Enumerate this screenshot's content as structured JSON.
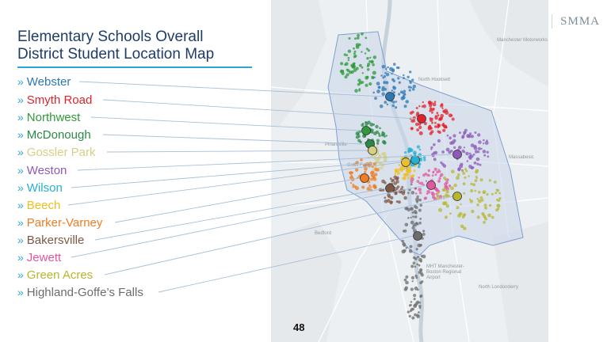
{
  "title": {
    "line1": "Elementary Schools Overall",
    "line2": "District Student Location Map"
  },
  "brand": "SMMA",
  "page_number": "48",
  "legend": [
    {
      "label": "Webster",
      "color": "#2e78b5"
    },
    {
      "label": "Smyth Road",
      "color": "#e3212b"
    },
    {
      "label": "Northwest",
      "color": "#2e9a3a"
    },
    {
      "label": "McDonough",
      "color": "#2a8a45"
    },
    {
      "label": "Gossler Park",
      "color": "#d6cf84"
    },
    {
      "label": "Weston",
      "color": "#8e5ab8"
    },
    {
      "label": "Wilson",
      "color": "#25b0cf"
    },
    {
      "label": "Beech",
      "color": "#f0be1f"
    },
    {
      "label": "Parker-Varney",
      "color": "#ee7d24"
    },
    {
      "label": "Bakersville",
      "color": "#7d5846"
    },
    {
      "label": "Jewett",
      "color": "#e0589e"
    },
    {
      "label": "Green Acres",
      "color": "#b7b72f"
    },
    {
      "label": "Highland-Goffe’s Falls",
      "color": "#6d6d6d"
    }
  ],
  "map_labels": {
    "manchester_motorworks": "Manchester Motorworks",
    "north_hooksett": "North Hooksett",
    "pinardville": "Pinardville",
    "goffs_falls": "Goffs Falls",
    "bedford": "Bedford",
    "airport": "MHT Manchester-Boston Regional Airport",
    "massabesic": "Massabesic",
    "north_londonderry": "North Londonderry"
  }
}
